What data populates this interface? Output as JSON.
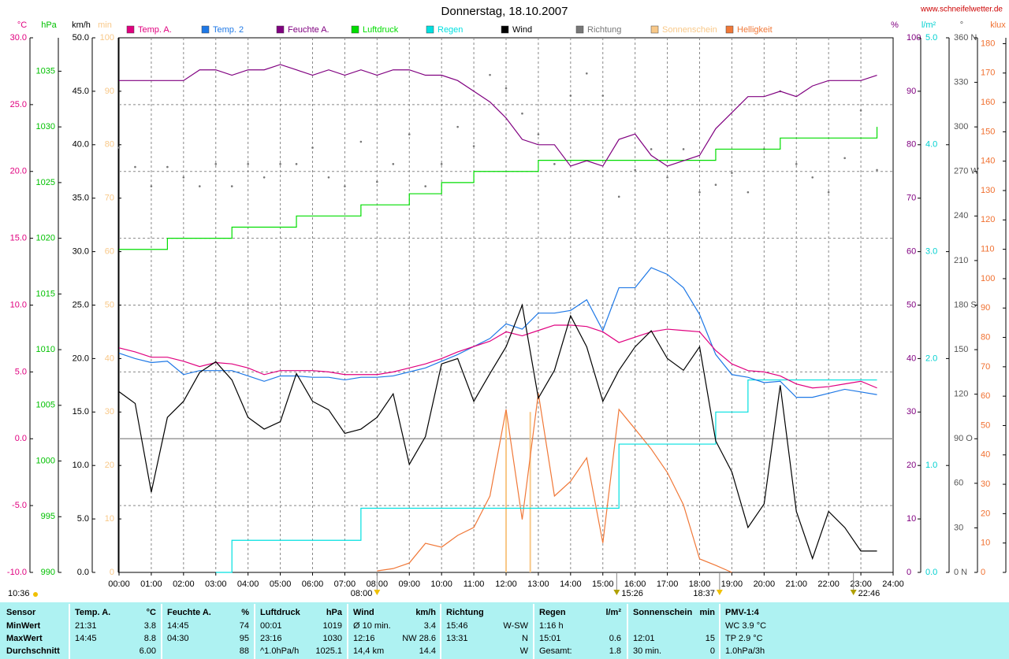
{
  "chart_data": {
    "type": "line",
    "title": "Donnerstag, 18.10.2007",
    "site": "www.schneifelwetter.de",
    "xlim": [
      0,
      24
    ],
    "xticks": [
      {
        "value": 0,
        "label": "00:00"
      },
      {
        "value": 1,
        "label": "01:00"
      },
      {
        "value": 2,
        "label": "02:00"
      },
      {
        "value": 3,
        "label": "03:00"
      },
      {
        "value": 4,
        "label": "04:00"
      },
      {
        "value": 5,
        "label": "05:00"
      },
      {
        "value": 6,
        "label": "06:00"
      },
      {
        "value": 7,
        "label": "07:00"
      },
      {
        "value": 8,
        "label": "08:00"
      },
      {
        "value": 9,
        "label": "09:00"
      },
      {
        "value": 10,
        "label": "10:00"
      },
      {
        "value": 11,
        "label": "11:00"
      },
      {
        "value": 12,
        "label": "12:00"
      },
      {
        "value": 13,
        "label": "13:00"
      },
      {
        "value": 14,
        "label": "14:00"
      },
      {
        "value": 15,
        "label": "15:00"
      },
      {
        "value": 16,
        "label": "16:00"
      },
      {
        "value": 17,
        "label": "17:00"
      },
      {
        "value": 18,
        "label": "18:00"
      },
      {
        "value": 19,
        "label": "19:00"
      },
      {
        "value": 20,
        "label": "20:00"
      },
      {
        "value": 21,
        "label": "21:00"
      },
      {
        "value": 22,
        "label": "22:00"
      },
      {
        "value": 23,
        "label": "23:00"
      },
      {
        "value": 24,
        "label": "24:00"
      }
    ],
    "axes": [
      {
        "unit": "°C",
        "side": "left",
        "color": "#e0007f",
        "grid": true,
        "lim": [
          -10,
          30
        ],
        "ticks": [
          {
            "value": 30,
            "label": "30.0"
          },
          {
            "value": 25,
            "label": "25.0"
          },
          {
            "value": 20,
            "label": "20.0"
          },
          {
            "value": 15,
            "label": "15.0"
          },
          {
            "value": 10,
            "label": "10.0"
          },
          {
            "value": 5,
            "label": "5.0"
          },
          {
            "value": 0,
            "label": "0.0"
          },
          {
            "value": -5,
            "label": "-5.0"
          },
          {
            "value": -10,
            "label": "-10.0"
          }
        ]
      },
      {
        "unit": "hPa",
        "side": "left",
        "color": "#00c000",
        "grid": false,
        "lim": [
          990,
          1038
        ],
        "ticks": [
          1035,
          1030,
          1025,
          1020,
          1015,
          1010,
          1005,
          1000,
          995,
          990
        ]
      },
      {
        "unit": "km/h",
        "side": "left",
        "color": "#000000",
        "grid": false,
        "lim": [
          0,
          50
        ],
        "ticks": [
          {
            "value": 50,
            "label": "50.0"
          },
          {
            "value": 45,
            "label": "45.0"
          },
          {
            "value": 40,
            "label": "40.0"
          },
          {
            "value": 35,
            "label": "35.0"
          },
          {
            "value": 30,
            "label": "30.0"
          },
          {
            "value": 25,
            "label": "25.0"
          },
          {
            "value": 20,
            "label": "20.0"
          },
          {
            "value": 15,
            "label": "15.0"
          },
          {
            "value": 10,
            "label": "10.0"
          },
          {
            "value": 5,
            "label": "5.0"
          },
          {
            "value": 0,
            "label": "0.0"
          }
        ]
      },
      {
        "unit": "min",
        "side": "left",
        "color": "#f8c888",
        "grid": false,
        "lim": [
          0,
          100
        ],
        "ticks": [
          100,
          90,
          80,
          70,
          60,
          50,
          40,
          30,
          20,
          10,
          0
        ]
      },
      {
        "unit": "%",
        "side": "right",
        "color": "#800080",
        "grid": false,
        "lim": [
          0,
          100
        ],
        "ticks": [
          100,
          90,
          80,
          70,
          60,
          50,
          40,
          30,
          20,
          10,
          0
        ]
      },
      {
        "unit": "l/m²",
        "side": "right",
        "color": "#00d0d0",
        "grid": false,
        "lim": [
          0,
          5
        ],
        "ticks": [
          {
            "value": 5,
            "label": "5.0"
          },
          {
            "value": 4,
            "label": "4.0"
          },
          {
            "value": 3,
            "label": "3.0"
          },
          {
            "value": 2,
            "label": "2.0"
          },
          {
            "value": 1,
            "label": "1.0"
          },
          {
            "value": 0,
            "label": "0.0"
          }
        ]
      },
      {
        "unit": "°",
        "side": "right",
        "color": "#555555",
        "grid": false,
        "lim": [
          0,
          360
        ],
        "ticks": [
          {
            "value": 360,
            "label": "360 N"
          },
          330,
          300,
          {
            "value": 270,
            "label": "270 W"
          },
          240,
          210,
          {
            "value": 180,
            "label": "180 S"
          },
          150,
          120,
          {
            "value": 90,
            "label": "90 O"
          },
          60,
          30,
          {
            "value": 0,
            "label": "0 N"
          }
        ]
      },
      {
        "unit": "klux",
        "side": "right",
        "color": "#f07030",
        "grid": false,
        "lim": [
          0,
          182
        ],
        "ticks": [
          180,
          170,
          160,
          150,
          140,
          130,
          120,
          110,
          100,
          90,
          80,
          70,
          60,
          50,
          40,
          30,
          20,
          10,
          0
        ]
      }
    ],
    "x": [
      0,
      0.5,
      1,
      1.5,
      2,
      2.5,
      3,
      3.5,
      4,
      4.5,
      5,
      5.5,
      6,
      6.5,
      7,
      7.5,
      8,
      8.5,
      9,
      9.5,
      10,
      10.5,
      11,
      11.5,
      12,
      12.5,
      13,
      13.5,
      14,
      14.5,
      15,
      15.5,
      16,
      16.5,
      17,
      17.5,
      18,
      18.5,
      19,
      19.5,
      20,
      20.5,
      21,
      21.5,
      22,
      22.5,
      23,
      23.5,
      24
    ],
    "series": [
      {
        "name": "Temp. A.",
        "color": "#e0007f",
        "axis": "°C",
        "style": "line",
        "values": [
          6.8,
          6.5,
          6.1,
          6.1,
          5.8,
          5.4,
          5.7,
          5.6,
          5.3,
          4.8,
          5.1,
          5.1,
          5.1,
          5.0,
          4.8,
          4.8,
          4.8,
          5.0,
          5.3,
          5.6,
          6.0,
          6.5,
          6.9,
          7.3,
          8.0,
          7.7,
          8.1,
          8.5,
          8.5,
          8.4,
          8.0,
          7.2,
          7.6,
          8.0,
          8.2,
          8.1,
          8.0,
          6.6,
          5.6,
          5.1,
          5.0,
          4.7,
          4.1,
          3.8,
          3.9,
          4.1,
          4.3,
          3.8,
          null
        ]
      },
      {
        "name": "Temp. 2",
        "color": "#1e78e6",
        "axis": "°C",
        "style": "line",
        "values": [
          6.4,
          6.0,
          5.7,
          5.8,
          4.8,
          5.1,
          5.1,
          5.1,
          4.7,
          4.3,
          4.7,
          4.7,
          4.6,
          4.6,
          4.4,
          4.6,
          4.6,
          4.7,
          5.0,
          5.3,
          5.8,
          6.3,
          6.9,
          7.5,
          8.6,
          8.2,
          9.4,
          9.4,
          9.6,
          10.4,
          8.1,
          11.3,
          11.3,
          12.8,
          12.3,
          11.3,
          9.3,
          6.3,
          4.8,
          4.6,
          4.2,
          4.3,
          3.1,
          3.1,
          3.4,
          3.7,
          3.5,
          3.3,
          null
        ]
      },
      {
        "name": "Feuchte A.",
        "color": "#800080",
        "axis": "%",
        "style": "line",
        "values": [
          92,
          92,
          92,
          92,
          92,
          94,
          94,
          93,
          94,
          94,
          95,
          94,
          93,
          94,
          93,
          94,
          93,
          94,
          94,
          93,
          93,
          92,
          90,
          88,
          85,
          81,
          80,
          80,
          76,
          77,
          76,
          81,
          82,
          78,
          76,
          77,
          78,
          83,
          86,
          89,
          89,
          90,
          89,
          91,
          92,
          92,
          92,
          93,
          null
        ]
      },
      {
        "name": "Luftdruck",
        "color": "#00dd00",
        "axis": "hPa",
        "style": "step",
        "values": [
          1019,
          1019,
          1019,
          1020,
          1020,
          1020,
          1020,
          1021,
          1021,
          1021,
          1021,
          1022,
          1022,
          1022,
          1022,
          1023,
          1023,
          1023,
          1024,
          1024,
          1025,
          1025,
          1026,
          1026,
          1026,
          1026,
          1027,
          1027,
          1027,
          1027,
          1027,
          1027,
          1027,
          1027,
          1027,
          1027,
          1027,
          1028,
          1028,
          1028,
          1028,
          1029,
          1029,
          1029,
          1029,
          1029,
          1029,
          1030,
          null
        ]
      },
      {
        "name": "Regen",
        "color": "#00e0e0",
        "axis": "l/m²",
        "style": "step",
        "values": [
          null,
          null,
          null,
          null,
          null,
          null,
          0,
          0.3,
          0.3,
          0.3,
          0.3,
          0.3,
          0.3,
          0.3,
          0.3,
          0.6,
          0.6,
          0.6,
          0.6,
          0.6,
          0.6,
          0.6,
          0.6,
          0.6,
          0.6,
          0.6,
          0.6,
          0.6,
          0.6,
          0.6,
          0.6,
          1.2,
          1.2,
          1.2,
          1.2,
          1.2,
          1.2,
          1.5,
          1.5,
          1.8,
          1.8,
          1.8,
          1.8,
          1.8,
          1.8,
          1.8,
          1.8,
          1.8,
          null
        ]
      },
      {
        "name": "Wind",
        "color": "#000000",
        "axis": "km/h",
        "style": "line",
        "values": [
          16.9,
          15.8,
          7.5,
          14.5,
          16,
          18.7,
          19.7,
          18,
          14.5,
          13.4,
          14.1,
          18.6,
          16,
          15.2,
          13,
          13.4,
          14.5,
          16.7,
          10.1,
          12.7,
          19.5,
          20,
          16,
          18.6,
          21.1,
          25,
          16.3,
          18.9,
          24,
          21.1,
          16,
          18.9,
          21.1,
          22.6,
          20,
          18.9,
          21.1,
          12.3,
          9.4,
          4.2,
          6.4,
          17.5,
          5.7,
          1.3,
          5.7,
          4.2,
          2,
          2,
          null
        ]
      },
      {
        "name": "Richtung",
        "color": "#777777",
        "axis": "°",
        "style": "dots",
        "values": [
          286,
          273,
          260,
          273,
          266,
          260,
          275,
          260,
          275,
          266,
          275,
          275,
          286,
          266,
          260,
          290,
          263,
          275,
          295,
          260,
          275,
          300,
          287,
          335,
          326,
          309,
          295,
          275,
          321,
          336,
          321,
          253,
          271,
          285,
          266,
          285,
          256,
          261,
          269,
          256,
          285,
          324,
          275,
          266,
          256,
          279,
          311,
          271,
          null
        ]
      },
      {
        "name": "Sonnenschein",
        "color": "#f8c888",
        "axis": "min",
        "style": "bars",
        "x": [
          12,
          12.75
        ],
        "values": [
          30,
          30
        ]
      },
      {
        "name": "Helligkeit",
        "color": "#f07838",
        "axis": "klux",
        "style": "line",
        "values": [
          null,
          null,
          null,
          null,
          null,
          null,
          null,
          null,
          null,
          null,
          null,
          null,
          null,
          null,
          null,
          null,
          0.5,
          1.3,
          3.2,
          9.9,
          8.6,
          12.6,
          15.3,
          26,
          55.5,
          18,
          61,
          26,
          31,
          39,
          10,
          55.5,
          48.8,
          42,
          34,
          23,
          4.6,
          2.4,
          0,
          null,
          null,
          null,
          null,
          null,
          null,
          null,
          null,
          null,
          null
        ]
      }
    ],
    "markers": [
      {
        "time": 8,
        "label": "08:00"
      },
      {
        "time": 15.43,
        "label": "15:26"
      },
      {
        "time": 18.62,
        "label": "18:37"
      },
      {
        "time": 22.77,
        "label": "22:46"
      }
    ],
    "left_note": "10:36"
  },
  "table": {
    "header": [
      {
        "left": "Sensor"
      },
      {
        "left": "Temp. A.",
        "right": "°C"
      },
      {
        "left": "Feuchte A.",
        "right": "%"
      },
      {
        "left": "Luftdruck",
        "right": "hPa"
      },
      {
        "left": "Wind",
        "right": "km/h"
      },
      {
        "left": "Richtung"
      },
      {
        "left": "Regen",
        "right": "l/m²"
      },
      {
        "left": "Sonnenschein",
        "right": "min"
      },
      {
        "left": "PMV-1:4"
      }
    ],
    "rows": [
      [
        {
          "left": "MinWert"
        },
        {
          "left": "21:31",
          "right": "3.8"
        },
        {
          "left": "14:45",
          "right": "74"
        },
        {
          "left": "00:01",
          "right": "1019"
        },
        {
          "left": "Ø 10 min.",
          "right": "3.4"
        },
        {
          "left": "15:46",
          "right": "W-SW"
        },
        {
          "left": "1:16 h"
        },
        {},
        {
          "left": "WC 3.9 °C"
        }
      ],
      [
        {
          "left": "MaxWert"
        },
        {
          "left": "14:45",
          "right": "8.8"
        },
        {
          "left": "04:30",
          "right": "95"
        },
        {
          "left": "23:16",
          "right": "1030"
        },
        {
          "left": "12:16",
          "right": "NW 28.6"
        },
        {
          "left": "13:31",
          "right": "N"
        },
        {
          "left": "15:01",
          "right": "0.6"
        },
        {
          "left": "12:01",
          "right": "15"
        },
        {
          "left": "TP 2.9 °C"
        }
      ],
      [
        {
          "left": "Durchschnitt"
        },
        {
          "right": "6.00"
        },
        {
          "right": "88"
        },
        {
          "left": "^1.0hPa/h",
          "right": "1025.1"
        },
        {
          "left": "14,4 km",
          "right": "14.4"
        },
        {
          "right": "W"
        },
        {
          "left": "Gesamt:",
          "right": "1.8"
        },
        {
          "left": "30 min.",
          "right": "0"
        },
        {
          "left": "1.0hPa/3h"
        }
      ]
    ]
  }
}
